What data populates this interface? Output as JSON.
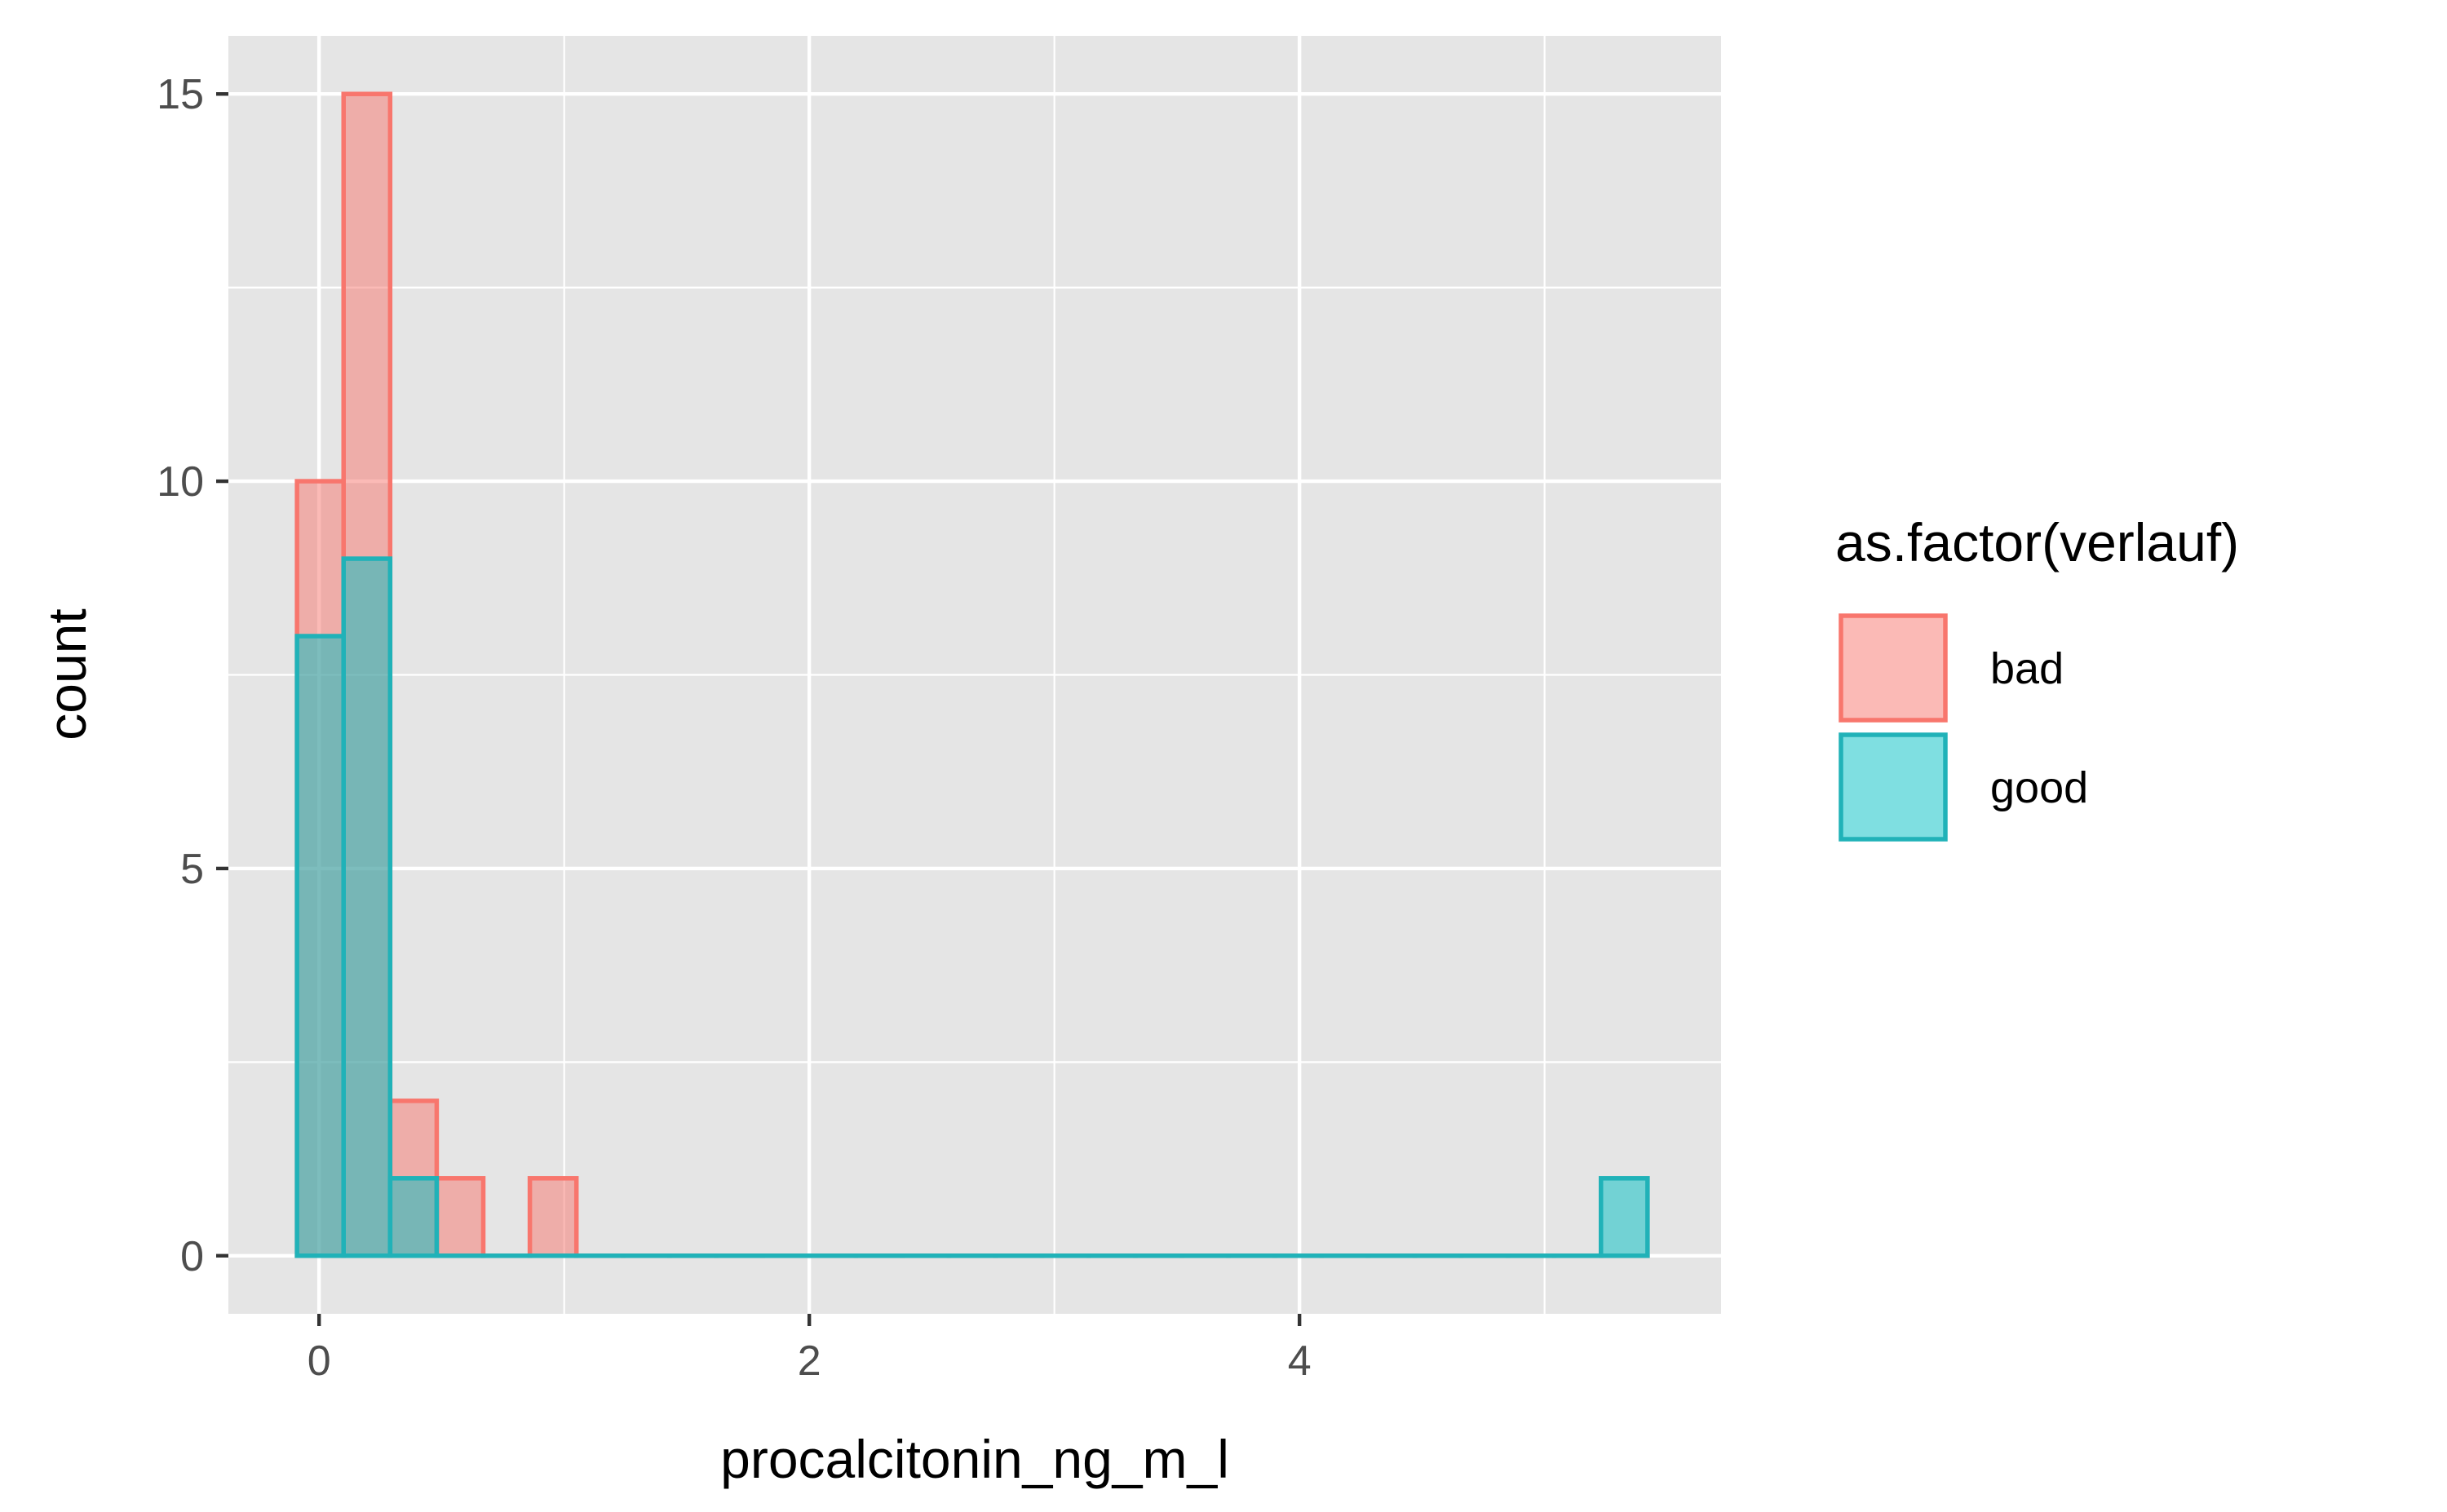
{
  "chart_data": {
    "type": "histogram",
    "xlabel": "procalcitonin_ng_m_l",
    "ylabel": "count",
    "xlim": [
      -0.37,
      5.72
    ],
    "ylim": [
      -0.75,
      15.75
    ],
    "x_ticks": [
      0,
      2,
      4
    ],
    "x_tick_labels": [
      "0",
      "2",
      "4"
    ],
    "y_ticks": [
      0,
      5,
      10,
      15
    ],
    "y_tick_labels": [
      "0",
      "5",
      "10",
      "15"
    ],
    "grid": true,
    "legend": {
      "title": "as.factor(verlauf)",
      "position": "right"
    },
    "bin_width": 0.19,
    "bin_edges": [
      -0.09,
      0.1,
      0.29,
      0.48,
      0.67,
      0.86,
      1.05,
      1.24,
      1.43,
      1.62,
      1.81,
      2.0,
      2.19,
      2.38,
      2.57,
      2.76,
      2.95,
      3.14,
      3.33,
      3.52,
      3.71,
      3.9,
      4.09,
      4.28,
      4.47,
      4.66,
      4.85,
      5.04,
      5.23,
      5.42
    ],
    "series": [
      {
        "name": "bad",
        "fill": "#F8766D",
        "stroke": "#F8766D",
        "counts": [
          10,
          15,
          2,
          1,
          0,
          1,
          0,
          0,
          0,
          0,
          0,
          0,
          0,
          0,
          0,
          0,
          0,
          0,
          0,
          0,
          0,
          0,
          0,
          0,
          0,
          0,
          0,
          0,
          0
        ]
      },
      {
        "name": "good",
        "fill": "#00BFC4",
        "stroke": "#20B2B8",
        "counts": [
          8,
          9,
          1,
          0,
          0,
          0,
          0,
          0,
          0,
          0,
          0,
          0,
          0,
          0,
          0,
          0,
          0,
          0,
          0,
          0,
          0,
          0,
          0,
          0,
          0,
          0,
          0,
          0,
          1
        ]
      }
    ]
  }
}
